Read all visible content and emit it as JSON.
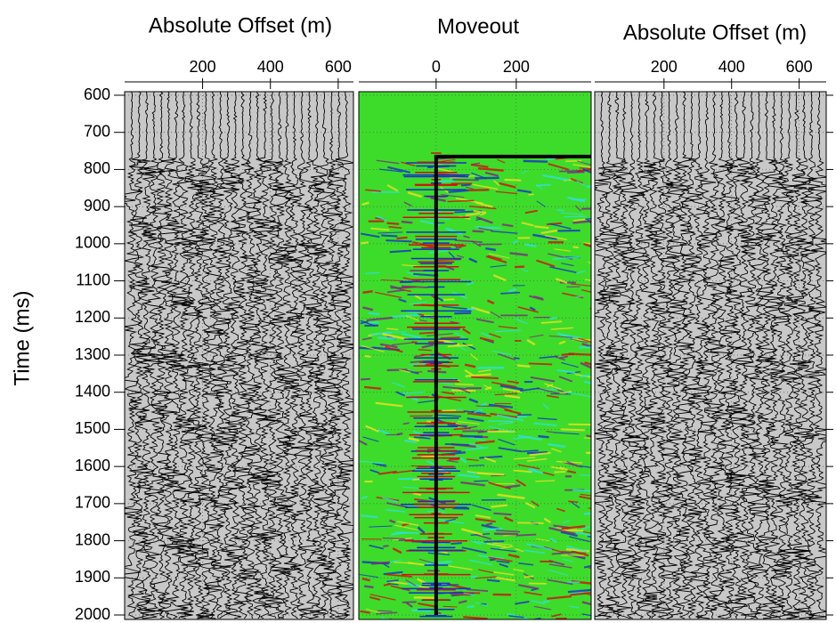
{
  "chart_data": [
    {
      "type": "wiggle",
      "title": "Absolute Offset (m)",
      "ylabel": "Time (ms)",
      "xlim": [
        -30,
        645
      ],
      "xticks": [
        200,
        400,
        600
      ],
      "ylim": [
        600,
        2000
      ],
      "yticks": [
        600,
        700,
        800,
        900,
        1000,
        1100,
        1200,
        1300,
        1400,
        1500,
        1600,
        1700,
        1800,
        1900,
        2000
      ],
      "grid": true,
      "color": "#000000",
      "background": "#c8c8c8"
    },
    {
      "type": "moveout",
      "title": "Moveout",
      "xlim": [
        -193,
        387
      ],
      "xticks": [
        0,
        200
      ],
      "ylim": [
        600,
        2000
      ],
      "grid": true,
      "background": "#3ddc2a",
      "series": [
        {
          "x": [
            387,
            0,
            0
          ],
          "values": [
            765,
            765,
            2000
          ],
          "color": "#000000"
        }
      ]
    },
    {
      "type": "wiggle",
      "title": "Absolute Offset (m)",
      "xlim": [
        -5,
        680
      ],
      "xticks": [
        200,
        400,
        600
      ],
      "ylim": [
        600,
        2000
      ],
      "grid": true,
      "color": "#000000",
      "background": "#c8c8c8"
    }
  ]
}
